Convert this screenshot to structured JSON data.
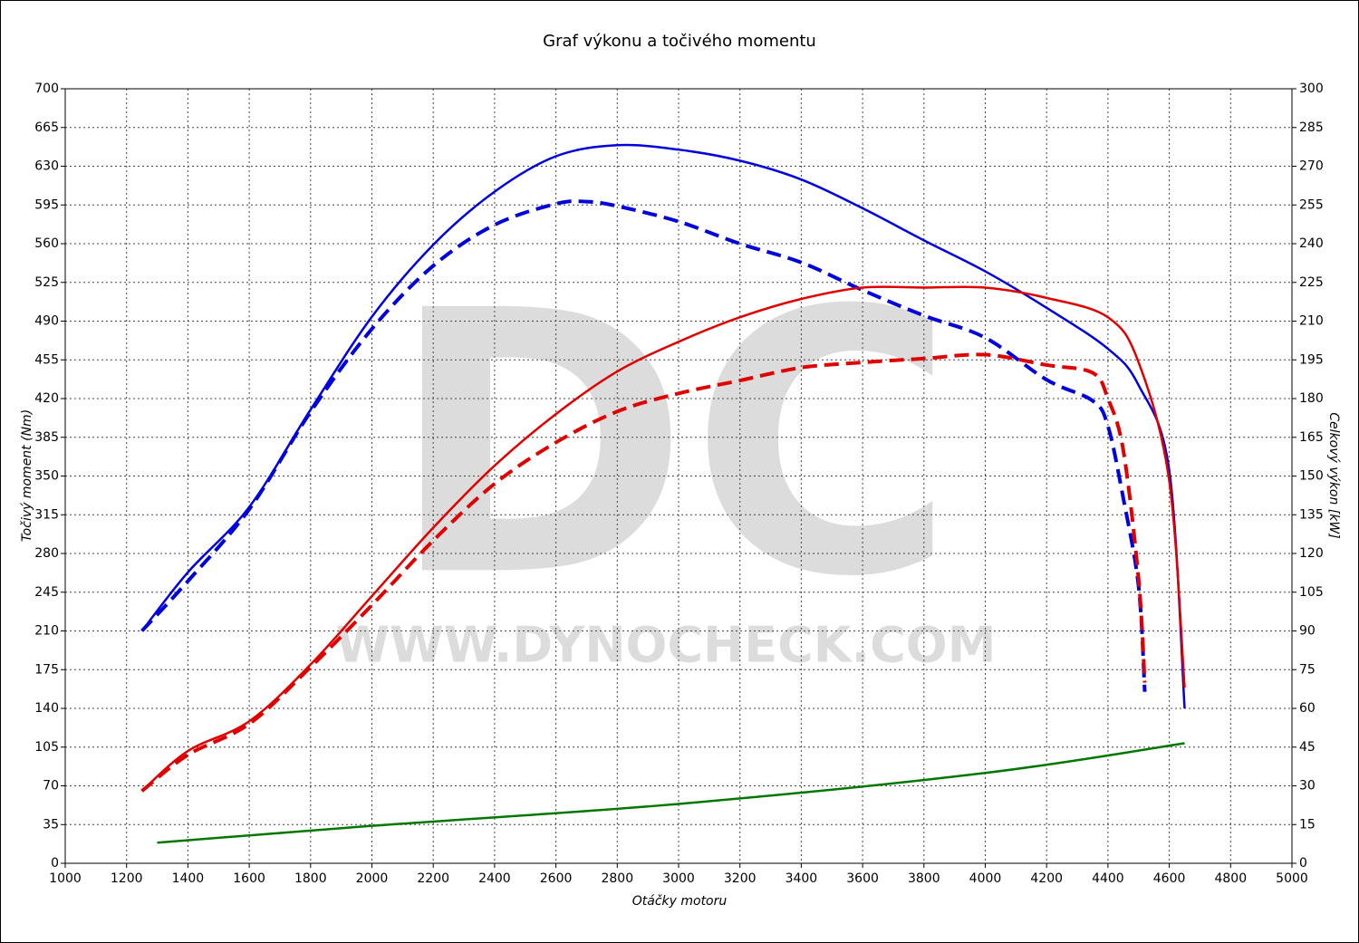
{
  "chart_data": {
    "type": "line",
    "title": "Graf výkonu a točivého momentu",
    "x_label": "Otáčky motoru",
    "y_label": "Točivý moment (Nm)",
    "y2_label": "Celkový výkon [kW]",
    "watermark": "DC",
    "watermark_url": "WWW.DYNOCHECK.COM",
    "xlim": [
      1000,
      5000
    ],
    "xticks": [
      1000,
      1200,
      1400,
      1600,
      1800,
      2000,
      2200,
      2400,
      2600,
      2800,
      3000,
      3200,
      3400,
      3600,
      3800,
      4000,
      4200,
      4400,
      4600,
      4800,
      5000
    ],
    "ylim": [
      0,
      700
    ],
    "yticks": [
      0,
      35,
      70,
      105,
      140,
      175,
      210,
      245,
      280,
      315,
      350,
      385,
      420,
      455,
      490,
      525,
      560,
      595,
      630,
      665,
      700
    ],
    "y2lim": [
      0,
      300
    ],
    "y2ticks": [
      0,
      15,
      30,
      45,
      60,
      75,
      90,
      105,
      120,
      135,
      150,
      165,
      180,
      195,
      210,
      225,
      240,
      255,
      270,
      285,
      300
    ],
    "grid": true,
    "series": [
      {
        "color": "#0000dd",
        "style": "solid",
        "axis": "y",
        "x": [
          1250,
          1400,
          1600,
          1800,
          2000,
          2200,
          2400,
          2600,
          2800,
          3000,
          3200,
          3400,
          3600,
          3800,
          4000,
          4200,
          4400,
          4500,
          4600,
          4650
        ],
        "values": [
          210,
          263,
          322,
          410,
          494,
          559,
          607,
          639,
          649,
          645,
          635,
          618,
          592,
          563,
          535,
          502,
          465,
          432,
          355,
          140
        ]
      },
      {
        "color": "#0000dd",
        "style": "dashed",
        "axis": "y",
        "x": [
          1250,
          1400,
          1600,
          1800,
          2000,
          2200,
          2400,
          2600,
          2700,
          2800,
          3000,
          3200,
          3400,
          3600,
          3800,
          4000,
          4200,
          4350,
          4400,
          4450,
          4500,
          4520
        ],
        "values": [
          210,
          255,
          320,
          408,
          483,
          540,
          577,
          596,
          598,
          594,
          580,
          560,
          543,
          518,
          495,
          475,
          437,
          418,
          395,
          330,
          250,
          155
        ]
      },
      {
        "color": "#e00000",
        "style": "solid",
        "axis": "y2",
        "x": [
          1250,
          1400,
          1600,
          1800,
          2000,
          2200,
          2400,
          2600,
          2800,
          3000,
          3200,
          3400,
          3600,
          3800,
          4000,
          4200,
          4400,
          4500,
          4600,
          4650
        ],
        "values": [
          28,
          43.5,
          55,
          77,
          103.5,
          130,
          154,
          174,
          190.5,
          202,
          211.5,
          218.6,
          223,
          223,
          223,
          219,
          211.5,
          194,
          148,
          68
        ]
      },
      {
        "color": "#e00000",
        "style": "dashed",
        "axis": "y2",
        "x": [
          1250,
          1400,
          1600,
          1800,
          2000,
          2200,
          2400,
          2600,
          2800,
          3000,
          3200,
          3400,
          3600,
          3800,
          4000,
          4200,
          4350,
          4400,
          4450,
          4500,
          4520
        ],
        "values": [
          28,
          42,
          54,
          76,
          100,
          125,
          147,
          163,
          175,
          182,
          187,
          192,
          194,
          195.5,
          197,
          193,
          190,
          180,
          160,
          110,
          70
        ]
      },
      {
        "color": "#007700",
        "style": "solid",
        "axis": "y2",
        "x": [
          1300,
          2000,
          3000,
          4000,
          4650
        ],
        "values": [
          8,
          14.5,
          23,
          35,
          46.5
        ]
      }
    ]
  }
}
